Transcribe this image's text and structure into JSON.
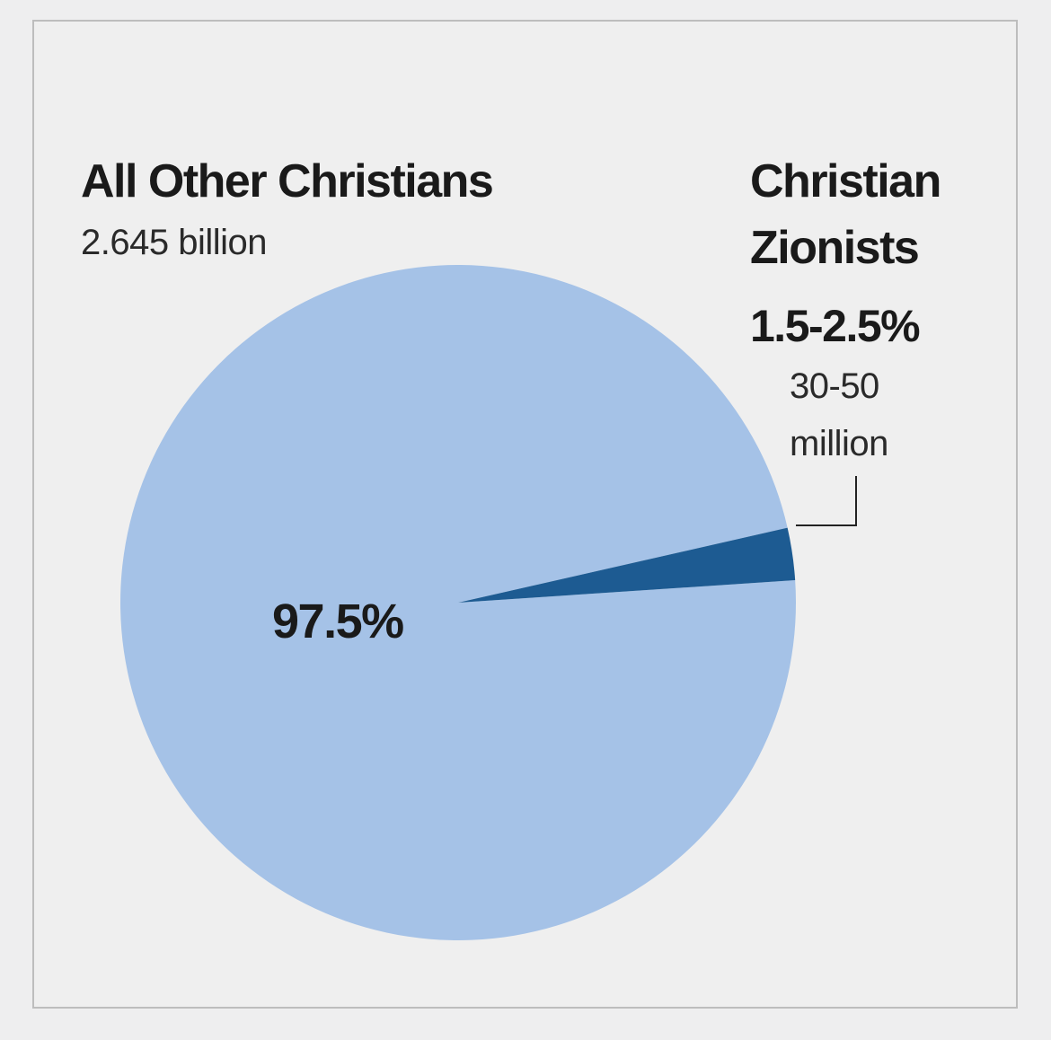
{
  "chart_data": {
    "type": "pie",
    "slices": [
      {
        "name": "All Other Christians",
        "count_label": "2.645 billion",
        "value": 97.5,
        "value_label": "97.5%",
        "color": "#a5c2e7"
      },
      {
        "name_line1": "Christian",
        "name_line2": "Zionists",
        "value": 2.5,
        "value_label": "1.5-2.5%",
        "count_line1": "30-50",
        "count_line2": "million",
        "color": "#1d5b92"
      }
    ]
  },
  "colors": {
    "background": "#eeeeef",
    "frame": "#bdbdbd",
    "pie_main": "#a5c2e7",
    "pie_slice": "#1d5b92"
  }
}
